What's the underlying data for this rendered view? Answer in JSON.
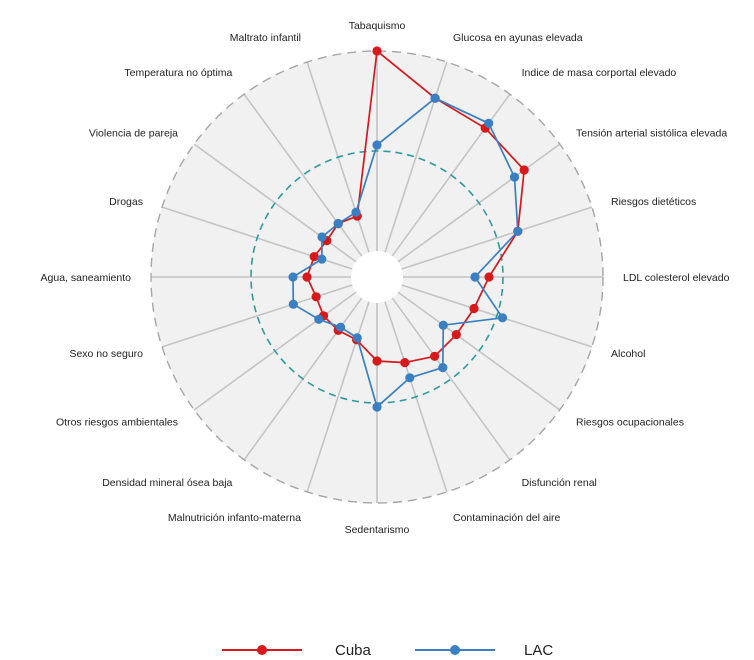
{
  "chart_data": {
    "type": "radar",
    "title": "",
    "categories": [
      "Tabaquismo",
      "Glucosa en ayunas elevada",
      "Indice de masa corportal elevado",
      "Tensión arterial sistólica elevada",
      "Riesgos dietéticos",
      "LDL colesterol elevado",
      "Alcohol",
      "Riesgos ocupacionales",
      "Disfunción renal",
      "Contaminación del aire",
      "Sedentarismo",
      "Malnutrición infanto-materna",
      "Densidad mineral ósea baja",
      "Otros riesgos ambientales",
      "Sexo no seguro",
      "Agua, saneamiento",
      "Drogas",
      "Violencia de pareja",
      "Temperatura no óptima",
      "Maltrato infantil"
    ],
    "series": [
      {
        "name": "Cuba",
        "color": "#d7191c",
        "values": [
          1.0,
          0.81,
          0.79,
          0.78,
          0.61,
          0.43,
          0.38,
          0.36,
          0.36,
          0.32,
          0.29,
          0.2,
          0.2,
          0.2,
          0.19,
          0.22,
          0.2,
          0.18,
          0.2,
          0.19
        ]
      },
      {
        "name": "LAC",
        "color": "#3a7fc1",
        "values": [
          0.53,
          0.81,
          0.82,
          0.72,
          0.61,
          0.36,
          0.53,
          0.28,
          0.43,
          0.4,
          0.52,
          0.19,
          0.18,
          0.23,
          0.31,
          0.29,
          0.16,
          0.21,
          0.2,
          0.21
        ]
      }
    ],
    "rlim": [
      0,
      1
    ],
    "reference_circles": [
      0.5,
      1.0
    ],
    "legend_position": "bottom"
  }
}
